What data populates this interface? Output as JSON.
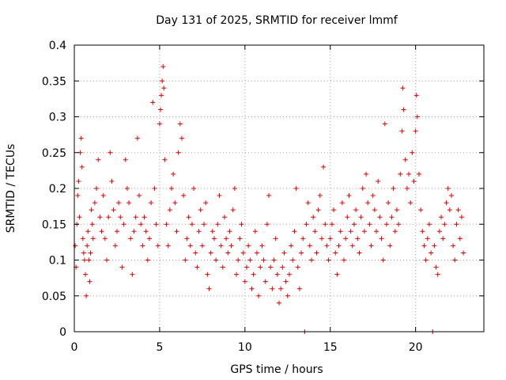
{
  "chart_data": {
    "type": "scatter",
    "title": "Day 131 of 2025, SRMTID for receiver lmmf",
    "xlabel": "GPS time / hours",
    "ylabel": "SRMTID / TECUs",
    "xlim": [
      0,
      24
    ],
    "ylim": [
      0,
      0.4
    ],
    "grid": true,
    "x_ticks": [
      {
        "value": 0,
        "label": "0"
      },
      {
        "value": 5,
        "label": "5"
      },
      {
        "value": 10,
        "label": "10"
      },
      {
        "value": 15,
        "label": "15"
      },
      {
        "value": 20,
        "label": "20"
      }
    ],
    "y_ticks": [
      {
        "value": 0,
        "label": "0"
      },
      {
        "value": 0.05,
        "label": "0.05"
      },
      {
        "value": 0.1,
        "label": "0.1"
      },
      {
        "value": 0.15,
        "label": "0.15"
      },
      {
        "value": 0.2,
        "label": "0.2"
      },
      {
        "value": 0.25,
        "label": "0.25"
      },
      {
        "value": 0.3,
        "label": "0.3"
      },
      {
        "value": 0.35,
        "label": "0.35"
      },
      {
        "value": 0.4,
        "label": "0.4"
      }
    ],
    "series": [
      {
        "name": "SRMTID",
        "color": "#e00000",
        "marker": "plus",
        "points": [
          [
            0.05,
            0.12
          ],
          [
            0.1,
            0.09
          ],
          [
            0.15,
            0.15
          ],
          [
            0.2,
            0.19
          ],
          [
            0.25,
            0.21
          ],
          [
            0.3,
            0.16
          ],
          [
            0.35,
            0.25
          ],
          [
            0.4,
            0.27
          ],
          [
            0.45,
            0.23
          ],
          [
            0.5,
            0.13
          ],
          [
            0.55,
            0.11
          ],
          [
            0.6,
            0.1
          ],
          [
            0.65,
            0.08
          ],
          [
            0.7,
            0.05
          ],
          [
            0.75,
            0.12
          ],
          [
            0.8,
            0.14
          ],
          [
            0.85,
            0.1
          ],
          [
            0.9,
            0.07
          ],
          [
            0.95,
            0.11
          ],
          [
            1.0,
            0.17
          ],
          [
            1.05,
            0.15
          ],
          [
            1.1,
            0.13
          ],
          [
            1.2,
            0.18
          ],
          [
            1.3,
            0.2
          ],
          [
            1.4,
            0.24
          ],
          [
            1.5,
            0.16
          ],
          [
            1.6,
            0.14
          ],
          [
            1.7,
            0.19
          ],
          [
            1.8,
            0.13
          ],
          [
            1.9,
            0.1
          ],
          [
            2.0,
            0.16
          ],
          [
            2.1,
            0.25
          ],
          [
            2.2,
            0.21
          ],
          [
            2.3,
            0.17
          ],
          [
            2.4,
            0.12
          ],
          [
            2.5,
            0.14
          ],
          [
            2.6,
            0.18
          ],
          [
            2.7,
            0.16
          ],
          [
            2.8,
            0.09
          ],
          [
            2.9,
            0.15
          ],
          [
            3.0,
            0.24
          ],
          [
            3.1,
            0.2
          ],
          [
            3.2,
            0.18
          ],
          [
            3.3,
            0.13
          ],
          [
            3.4,
            0.08
          ],
          [
            3.5,
            0.14
          ],
          [
            3.6,
            0.16
          ],
          [
            3.7,
            0.27
          ],
          [
            3.8,
            0.19
          ],
          [
            3.9,
            0.15
          ],
          [
            4.0,
            0.12
          ],
          [
            4.1,
            0.16
          ],
          [
            4.2,
            0.14
          ],
          [
            4.3,
            0.1
          ],
          [
            4.4,
            0.13
          ],
          [
            4.5,
            0.18
          ],
          [
            4.6,
            0.32
          ],
          [
            4.7,
            0.2
          ],
          [
            4.8,
            0.15
          ],
          [
            4.9,
            0.12
          ],
          [
            5.0,
            0.29
          ],
          [
            5.05,
            0.31
          ],
          [
            5.1,
            0.33
          ],
          [
            5.15,
            0.35
          ],
          [
            5.2,
            0.37
          ],
          [
            5.25,
            0.34
          ],
          [
            5.3,
            0.24
          ],
          [
            5.4,
            0.15
          ],
          [
            5.5,
            0.12
          ],
          [
            5.6,
            0.17
          ],
          [
            5.7,
            0.2
          ],
          [
            5.8,
            0.22
          ],
          [
            5.9,
            0.18
          ],
          [
            6.0,
            0.14
          ],
          [
            6.1,
            0.25
          ],
          [
            6.2,
            0.29
          ],
          [
            6.3,
            0.27
          ],
          [
            6.4,
            0.19
          ],
          [
            6.5,
            0.1
          ],
          [
            6.6,
            0.13
          ],
          [
            6.7,
            0.16
          ],
          [
            6.8,
            0.12
          ],
          [
            6.9,
            0.15
          ],
          [
            7.0,
            0.2
          ],
          [
            7.1,
            0.11
          ],
          [
            7.2,
            0.09
          ],
          [
            7.3,
            0.14
          ],
          [
            7.4,
            0.17
          ],
          [
            7.5,
            0.12
          ],
          [
            7.6,
            0.15
          ],
          [
            7.7,
            0.18
          ],
          [
            7.8,
            0.08
          ],
          [
            7.9,
            0.06
          ],
          [
            8.0,
            0.11
          ],
          [
            8.1,
            0.14
          ],
          [
            8.2,
            0.13
          ],
          [
            8.3,
            0.1
          ],
          [
            8.4,
            0.15
          ],
          [
            8.5,
            0.19
          ],
          [
            8.6,
            0.12
          ],
          [
            8.7,
            0.09
          ],
          [
            8.8,
            0.16
          ],
          [
            8.9,
            0.13
          ],
          [
            9.0,
            0.11
          ],
          [
            9.1,
            0.14
          ],
          [
            9.2,
            0.12
          ],
          [
            9.3,
            0.17
          ],
          [
            9.4,
            0.2
          ],
          [
            9.5,
            0.08
          ],
          [
            9.6,
            0.1
          ],
          [
            9.7,
            0.13
          ],
          [
            9.8,
            0.15
          ],
          [
            9.9,
            0.11
          ],
          [
            10.0,
            0.07
          ],
          [
            10.1,
            0.09
          ],
          [
            10.2,
            0.12
          ],
          [
            10.3,
            0.1
          ],
          [
            10.4,
            0.06
          ],
          [
            10.5,
            0.08
          ],
          [
            10.6,
            0.14
          ],
          [
            10.7,
            0.11
          ],
          [
            10.8,
            0.05
          ],
          [
            10.9,
            0.09
          ],
          [
            11.0,
            0.12
          ],
          [
            11.1,
            0.1
          ],
          [
            11.2,
            0.07
          ],
          [
            11.3,
            0.15
          ],
          [
            11.4,
            0.19
          ],
          [
            11.5,
            0.09
          ],
          [
            11.6,
            0.06
          ],
          [
            11.7,
            0.1
          ],
          [
            11.8,
            0.13
          ],
          [
            11.9,
            0.08
          ],
          [
            12.0,
            0.04
          ],
          [
            12.1,
            0.06
          ],
          [
            12.2,
            0.09
          ],
          [
            12.3,
            0.11
          ],
          [
            12.4,
            0.07
          ],
          [
            12.5,
            0.05
          ],
          [
            12.6,
            0.08
          ],
          [
            12.7,
            0.12
          ],
          [
            12.8,
            0.1
          ],
          [
            12.9,
            0.14
          ],
          [
            13.0,
            0.2
          ],
          [
            13.1,
            0.09
          ],
          [
            13.2,
            0.06
          ],
          [
            13.3,
            0.11
          ],
          [
            13.4,
            0.13
          ],
          [
            13.5,
            0.0
          ],
          [
            13.6,
            0.15
          ],
          [
            13.7,
            0.18
          ],
          [
            13.8,
            0.12
          ],
          [
            13.9,
            0.1
          ],
          [
            14.0,
            0.16
          ],
          [
            14.1,
            0.14
          ],
          [
            14.2,
            0.11
          ],
          [
            14.3,
            0.17
          ],
          [
            14.4,
            0.19
          ],
          [
            14.5,
            0.13
          ],
          [
            14.6,
            0.23
          ],
          [
            14.7,
            0.15
          ],
          [
            14.8,
            0.12
          ],
          [
            14.9,
            0.1
          ],
          [
            15.0,
            0.13
          ],
          [
            15.1,
            0.15
          ],
          [
            15.2,
            0.17
          ],
          [
            15.3,
            0.11
          ],
          [
            15.4,
            0.08
          ],
          [
            15.5,
            0.12
          ],
          [
            15.6,
            0.14
          ],
          [
            15.7,
            0.18
          ],
          [
            15.8,
            0.1
          ],
          [
            15.9,
            0.13
          ],
          [
            16.0,
            0.16
          ],
          [
            16.1,
            0.19
          ],
          [
            16.2,
            0.14
          ],
          [
            16.3,
            0.12
          ],
          [
            16.4,
            0.15
          ],
          [
            16.5,
            0.17
          ],
          [
            16.6,
            0.13
          ],
          [
            16.7,
            0.11
          ],
          [
            16.8,
            0.16
          ],
          [
            16.9,
            0.2
          ],
          [
            17.0,
            0.14
          ],
          [
            17.1,
            0.22
          ],
          [
            17.2,
            0.18
          ],
          [
            17.3,
            0.15
          ],
          [
            17.4,
            0.12
          ],
          [
            17.5,
            0.19
          ],
          [
            17.6,
            0.17
          ],
          [
            17.7,
            0.14
          ],
          [
            17.8,
            0.21
          ],
          [
            17.9,
            0.16
          ],
          [
            18.0,
            0.13
          ],
          [
            18.1,
            0.1
          ],
          [
            18.2,
            0.29
          ],
          [
            18.3,
            0.15
          ],
          [
            18.4,
            0.18
          ],
          [
            18.5,
            0.12
          ],
          [
            18.6,
            0.16
          ],
          [
            18.7,
            0.2
          ],
          [
            18.8,
            0.14
          ],
          [
            18.9,
            0.17
          ],
          [
            19.0,
            0.15
          ],
          [
            19.1,
            0.22
          ],
          [
            19.2,
            0.28
          ],
          [
            19.25,
            0.34
          ],
          [
            19.3,
            0.31
          ],
          [
            19.4,
            0.24
          ],
          [
            19.5,
            0.2
          ],
          [
            19.6,
            0.22
          ],
          [
            19.7,
            0.18
          ],
          [
            19.8,
            0.25
          ],
          [
            19.9,
            0.21
          ],
          [
            20.0,
            0.28
          ],
          [
            20.05,
            0.33
          ],
          [
            20.1,
            0.3
          ],
          [
            20.2,
            0.22
          ],
          [
            20.3,
            0.17
          ],
          [
            20.4,
            0.14
          ],
          [
            20.5,
            0.12
          ],
          [
            20.6,
            0.1
          ],
          [
            20.7,
            0.13
          ],
          [
            20.8,
            0.15
          ],
          [
            20.9,
            0.11
          ],
          [
            21.0,
            0.0
          ],
          [
            21.1,
            0.12
          ],
          [
            21.2,
            0.09
          ],
          [
            21.3,
            0.08
          ],
          [
            21.4,
            0.14
          ],
          [
            21.5,
            0.16
          ],
          [
            21.6,
            0.13
          ],
          [
            21.7,
            0.15
          ],
          [
            21.8,
            0.18
          ],
          [
            21.9,
            0.2
          ],
          [
            22.0,
            0.17
          ],
          [
            22.1,
            0.19
          ],
          [
            22.2,
            0.12
          ],
          [
            22.3,
            0.1
          ],
          [
            22.4,
            0.15
          ],
          [
            22.5,
            0.17
          ],
          [
            22.6,
            0.13
          ],
          [
            22.7,
            0.16
          ],
          [
            22.8,
            0.11
          ]
        ]
      }
    ]
  }
}
